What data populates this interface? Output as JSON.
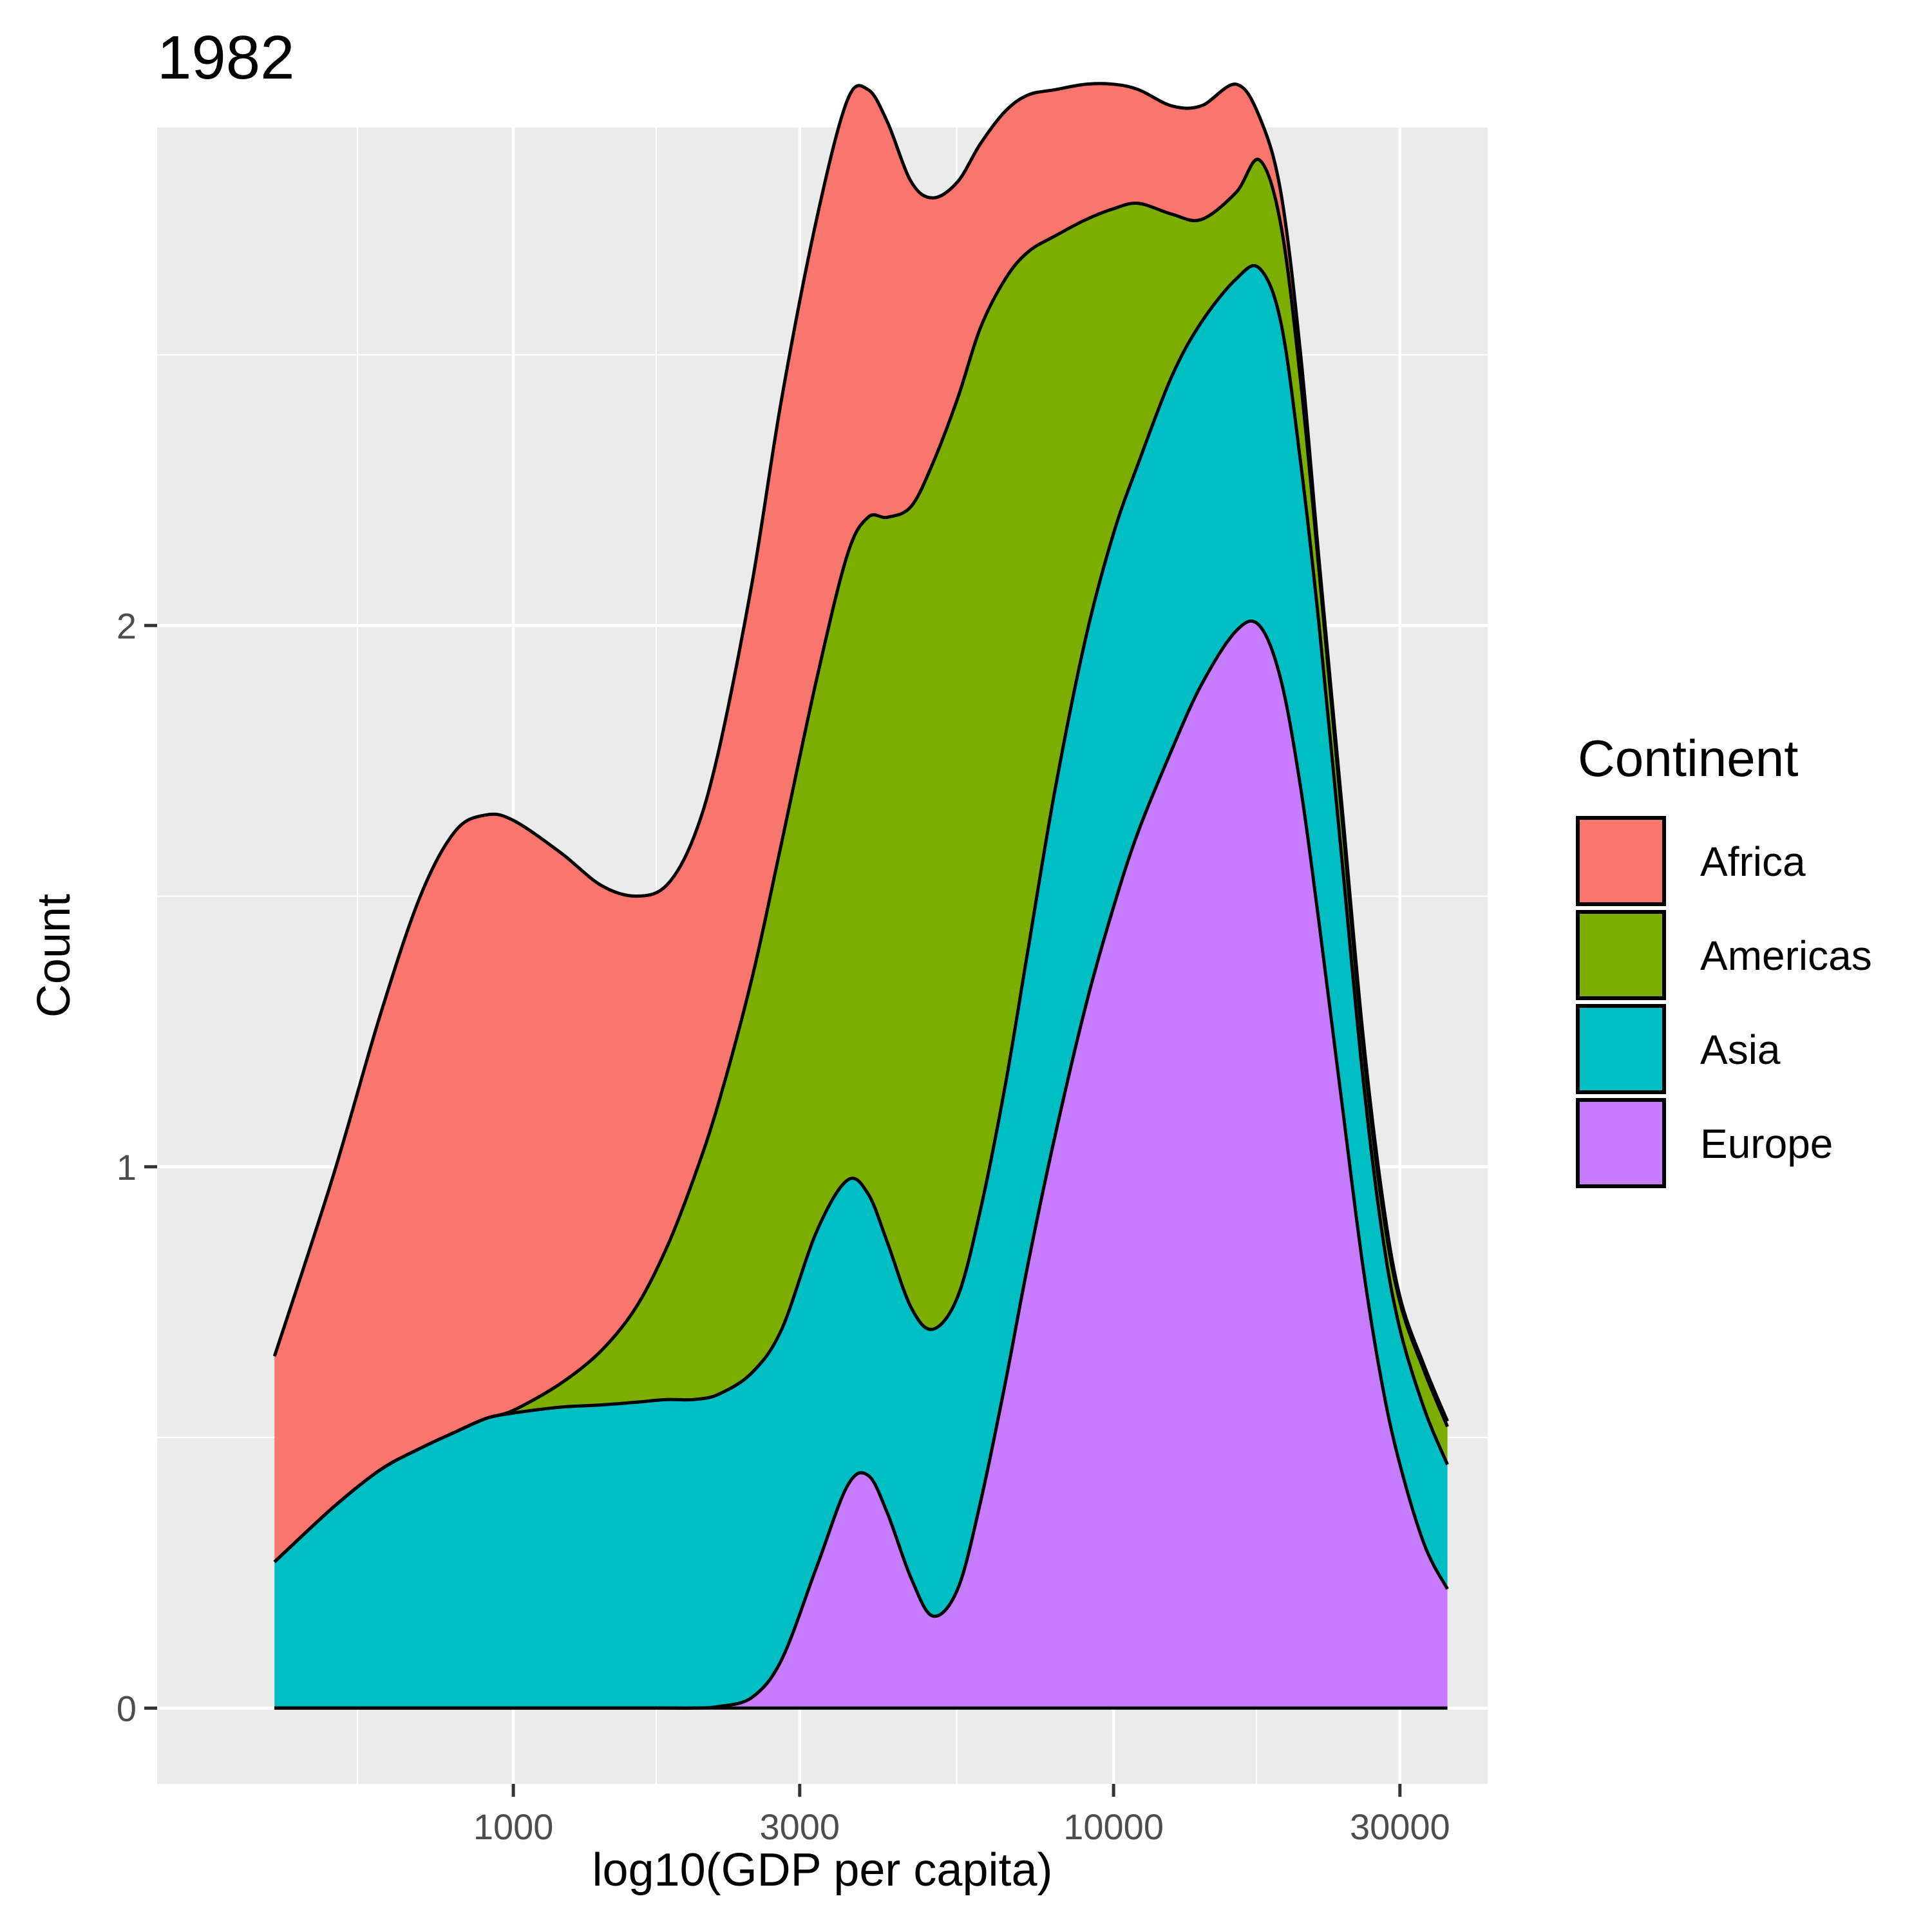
{
  "chart_data": {
    "type": "area",
    "stacked": true,
    "title": "1982",
    "xlabel": "log10(GDP per capita)",
    "ylabel": "Count",
    "x_scale": "log10",
    "xlim": [
      255,
      42000
    ],
    "ylim": [
      -0.14,
      2.92
    ],
    "x_ticks": [
      1000,
      3000,
      10000,
      30000
    ],
    "x_tick_labels": [
      "1000",
      "3000",
      "10000",
      "30000"
    ],
    "x_minor_ticks": [
      550,
      1730,
      5480,
      17300
    ],
    "y_ticks": [
      0,
      1,
      2
    ],
    "y_tick_labels": [
      "0",
      "1",
      "2"
    ],
    "y_minor_ticks": [
      0.5,
      1.5,
      2.5
    ],
    "grid": true,
    "legend": {
      "title": "Continent",
      "position": "right"
    },
    "x": [
      400,
      500,
      600,
      700,
      800,
      900,
      1000,
      1200,
      1400,
      1600,
      1800,
      2000,
      2200,
      2500,
      2800,
      3200,
      3600,
      3900,
      4200,
      4600,
      5000,
      5500,
      6000,
      6600,
      7200,
      8000,
      9000,
      10000,
      11000,
      12500,
      14000,
      16000,
      17500,
      19000,
      20500,
      22000,
      24000,
      26000,
      28000,
      30000,
      33000,
      36000
    ],
    "series": [
      {
        "name": "Europe",
        "color": "#C77CFF",
        "values": [
          0,
          0,
          0,
          0,
          0,
          0,
          0,
          0,
          0,
          0,
          0,
          0,
          0.003,
          0.02,
          0.09,
          0.26,
          0.41,
          0.43,
          0.36,
          0.24,
          0.17,
          0.22,
          0.38,
          0.6,
          0.82,
          1.06,
          1.3,
          1.48,
          1.62,
          1.77,
          1.89,
          1.99,
          2.0,
          1.9,
          1.7,
          1.45,
          1.12,
          0.82,
          0.6,
          0.45,
          0.3,
          0.22
        ]
      },
      {
        "name": "Asia",
        "color": "#00BFC4",
        "values": [
          0.27,
          0.37,
          0.44,
          0.48,
          0.51,
          0.535,
          0.545,
          0.556,
          0.56,
          0.565,
          0.57,
          0.57,
          0.58,
          0.62,
          0.7,
          0.88,
          0.975,
          0.95,
          0.86,
          0.74,
          0.7,
          0.76,
          0.92,
          1.15,
          1.4,
          1.7,
          1.98,
          2.17,
          2.3,
          2.46,
          2.56,
          2.64,
          2.66,
          2.56,
          2.3,
          2.0,
          1.57,
          1.17,
          0.88,
          0.7,
          0.55,
          0.45
        ]
      },
      {
        "name": "Americas",
        "color": "#7CAE00",
        "values": [
          0.27,
          0.37,
          0.44,
          0.48,
          0.51,
          0.535,
          0.55,
          0.6,
          0.66,
          0.74,
          0.85,
          0.98,
          1.12,
          1.35,
          1.6,
          1.9,
          2.13,
          2.2,
          2.2,
          2.22,
          2.3,
          2.42,
          2.55,
          2.64,
          2.69,
          2.72,
          2.75,
          2.77,
          2.78,
          2.76,
          2.75,
          2.8,
          2.86,
          2.74,
          2.45,
          2.1,
          1.65,
          1.23,
          0.93,
          0.75,
          0.62,
          0.52
        ]
      },
      {
        "name": "Africa",
        "color": "#F8766D",
        "values": [
          0.65,
          0.98,
          1.28,
          1.5,
          1.62,
          1.65,
          1.64,
          1.58,
          1.52,
          1.5,
          1.52,
          1.61,
          1.77,
          2.08,
          2.42,
          2.75,
          2.97,
          2.99,
          2.93,
          2.82,
          2.79,
          2.82,
          2.89,
          2.95,
          2.98,
          2.99,
          3.0,
          3.0,
          2.99,
          2.96,
          2.96,
          3.0,
          2.94,
          2.8,
          2.5,
          2.12,
          1.67,
          1.25,
          0.95,
          0.76,
          0.63,
          0.53
        ]
      }
    ]
  }
}
